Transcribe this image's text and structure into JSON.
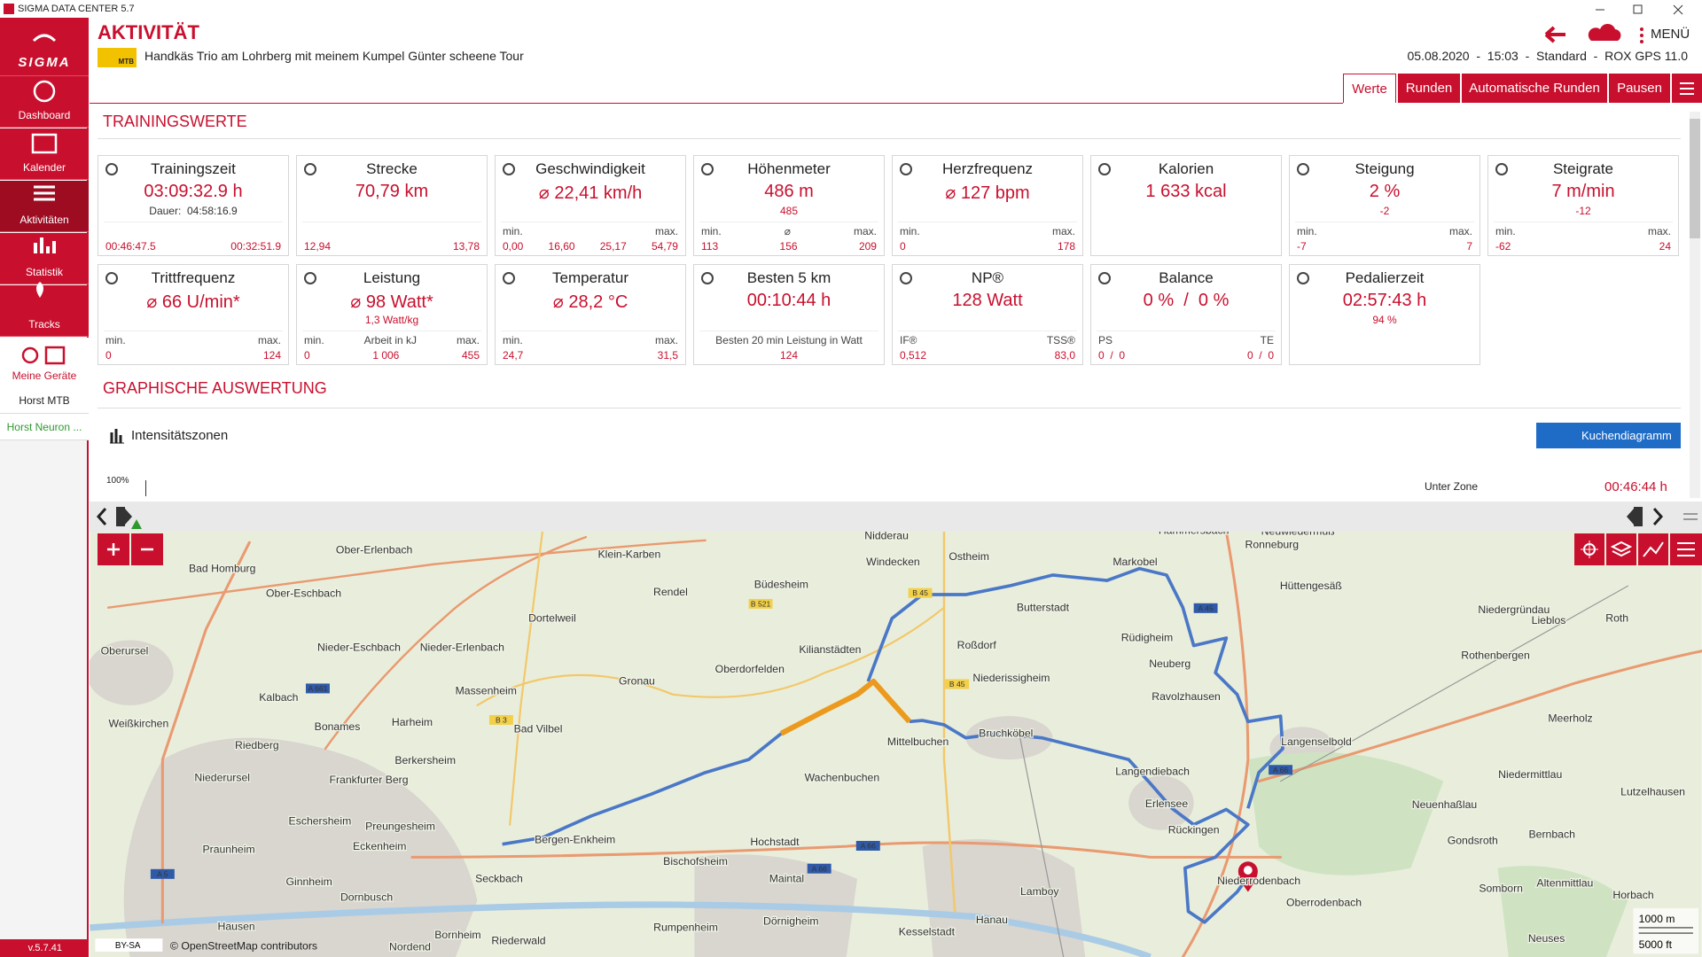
{
  "window": {
    "title": "SIGMA DATA CENTER 5.7"
  },
  "sidebar": {
    "logo": "SIGMA",
    "items": [
      "Dashboard",
      "Kalender",
      "Aktivitäten",
      "Statistik",
      "Tracks",
      "Meine Geräte"
    ],
    "devices": [
      "Horst MTB",
      "Horst Neuron ..."
    ],
    "version": "v.5.7.41"
  },
  "header": {
    "title": "AKTIVITÄT",
    "badge": "MTB",
    "activity_name": "Handkäs Trio am Lohrberg mit meinem Kumpel Günter scheene Tour",
    "menu": "MENÜ",
    "info": "05.08.2020  -  15:03  -  Standard  -  ROX GPS 11.0"
  },
  "tabs": [
    "Werte",
    "Runden",
    "Automatische Runden",
    "Pausen"
  ],
  "section_values": "TRAININGSWERTE",
  "cards": [
    {
      "title": "Trainingszeit",
      "main": "03:09:32.9 h",
      "sub": "Dauer:  04:58:16.9",
      "values": [
        "00:46:47.5",
        "00:32:51.9"
      ]
    },
    {
      "title": "Strecke",
      "main": "70,79 km",
      "values": [
        "12,94",
        "13,78"
      ]
    },
    {
      "title": "Geschwindigkeit",
      "main": "⌀ 22,41 km/h",
      "labels": [
        "min.",
        "max."
      ],
      "values": [
        "0,00",
        "16,60",
        "25,17",
        "54,79"
      ]
    },
    {
      "title": "Höhenmeter",
      "main": "486 m",
      "sub": "485",
      "labels": [
        "min.",
        "⌀",
        "max."
      ],
      "values": [
        "113",
        "156",
        "209"
      ]
    },
    {
      "title": "Herzfrequenz",
      "main": "⌀ 127 bpm",
      "labels": [
        "min.",
        "max."
      ],
      "values": [
        "0",
        "178"
      ]
    },
    {
      "title": "Kalorien",
      "main": "1 633 kcal"
    },
    {
      "title": "Steigung",
      "main": "2 %",
      "sub": "-2",
      "labels": [
        "min.",
        "max."
      ],
      "values": [
        "-7",
        "7"
      ]
    },
    {
      "title": "Steigrate",
      "main": "7 m/min",
      "sub": "-12",
      "labels": [
        "min.",
        "max."
      ],
      "values": [
        "-62",
        "24"
      ]
    },
    {
      "title": "Trittfrequenz",
      "main": "⌀ 66 U/min*",
      "labels": [
        "min.",
        "max."
      ],
      "values": [
        "0",
        "124"
      ]
    },
    {
      "title": "Leistung",
      "main": "⌀ 98 Watt*",
      "sub": "1,3 Watt/kg",
      "labels": [
        "min.",
        "Arbeit in kJ",
        "max."
      ],
      "values": [
        "0",
        "1 006",
        "455"
      ]
    },
    {
      "title": "Temperatur",
      "main": "⌀ 28,2 °C",
      "labels": [
        "min.",
        "max."
      ],
      "values": [
        "24,7",
        "31,5"
      ]
    },
    {
      "title": "Besten 5 km",
      "main": "00:10:44 h",
      "labels": [
        "Besten 20 min Leistung in Watt"
      ],
      "values": [
        "124"
      ]
    },
    {
      "title": "NP®",
      "main": "128 Watt",
      "labels": [
        "IF®",
        "TSS®"
      ],
      "values": [
        "0,512",
        "83,0"
      ]
    },
    {
      "title": "Balance",
      "main": "0 %  /  0 %",
      "labels": [
        "PS",
        "TE"
      ],
      "values": [
        "0  /  0",
        "0  /  0"
      ]
    },
    {
      "title": "Pedalierzeit",
      "main": "02:57:43 h",
      "sub": "94 %"
    }
  ],
  "section_graph": "GRAPHISCHE AUSWERTUNG",
  "graph": {
    "title": "Intensitätszonen",
    "button": "Kuchendiagramm",
    "axis_label": "100%",
    "zone": "Unter Zone",
    "zone_time": "00:46:44 h",
    "zone_unit": "h"
  },
  "map": {
    "labels": [
      "Nidderau",
      "Windecken",
      "Ostheim",
      "Butterstadt",
      "Markobel",
      "Hammersbach",
      "Neuwiedermuß",
      "Hüttengesäß",
      "Rüdigheim",
      "Neuberg",
      "Ravolzhausen",
      "Langenselbold",
      "Niederissigheim",
      "Roßdorf",
      "Kilianstädten",
      "Oberdorfelden",
      "Büdesheim",
      "Rendel",
      "Klein-Karben",
      "Dortelweil",
      "Gronau",
      "Massenheim",
      "Harheim",
      "Bad Vilbel",
      "Mittelbuchen",
      "Bruchköbel",
      "Wachenbuchen",
      "Langendiebach",
      "Erlensee",
      "Rückingen",
      "Niederrodenbach",
      "Hochstadt",
      "Bergen-Enkheim",
      "Bischofsheim",
      "Maintal",
      "Seckbach",
      "Dörnigheim",
      "Hanau",
      "Lamboy",
      "Kesselstadt",
      "Rumpenheim",
      "Oberrodenbach",
      "Frankfurter Berg",
      "Eschersheim",
      "Preungesheim",
      "Eckenheim",
      "Berkersheim",
      "Bonames",
      "Kalbach",
      "Riedberg",
      "Niederursel",
      "Weißkirchen",
      "Oberursel",
      "Bad Homburg",
      "Ober-Erlenbach",
      "Nieder-Erlenbach",
      "Nieder-Eschbach",
      "Ober-Eschbach",
      "Praunheim",
      "Ginnheim",
      "Dornbusch",
      "Hausen",
      "Bornheim",
      "Riederwald",
      "Nordend",
      "Neuenhaßlau",
      "Rothenbergen",
      "Niedergründau",
      "Lieblos",
      "Roth",
      "Meerholz",
      "Niedermittlau",
      "Lutzelhausen",
      "Gondsroth",
      "Bernbach",
      "Somborn",
      "Altenmittlau",
      "Horbach",
      "Neuses",
      "Ronneburg"
    ],
    "roads": [
      "A 66",
      "A 66",
      "A 45",
      "A 661",
      "B 45",
      "B 45",
      "B 521",
      "B 3",
      "A 5",
      "A 66"
    ],
    "license": "BY-SA",
    "attribution": "© OpenStreetMap contributors",
    "scale_m": "1000 m",
    "scale_ft": "5000 ft"
  }
}
